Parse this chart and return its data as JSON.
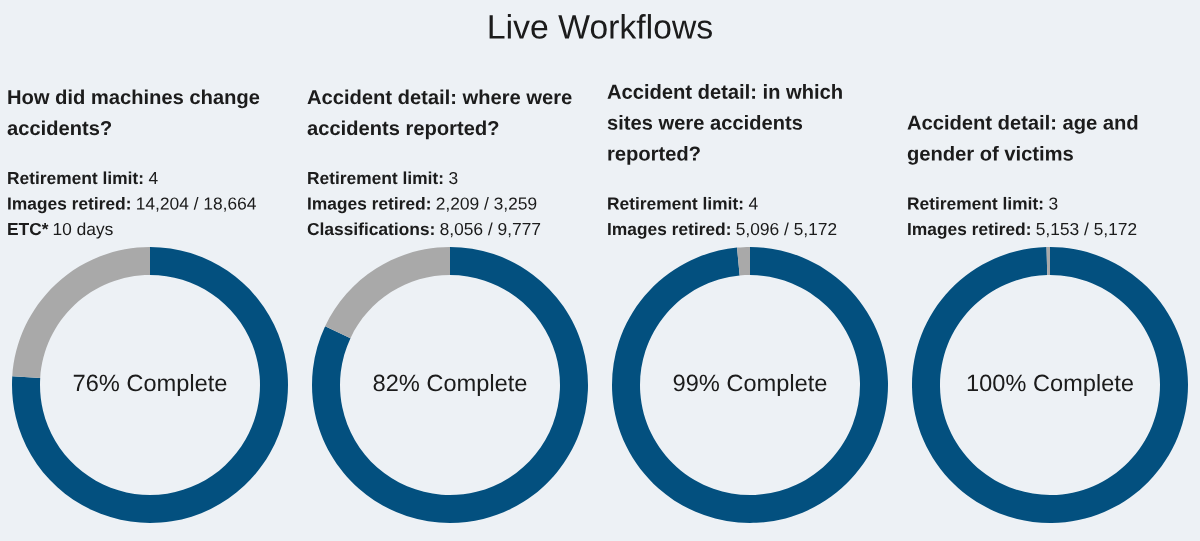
{
  "chart_data": [
    {
      "type": "other",
      "title": "Live Workflows"
    },
    {
      "type": "donut",
      "title": "How did machines change accidents?",
      "categories": [
        null,
        null
      ],
      "values": [
        76,
        24
      ],
      "colors": [
        "#03507f",
        "#a9a9a9"
      ],
      "annotations": [
        "Retirement limit:",
        "4",
        "Images retired:",
        "14,204 / 18,664",
        "ETC*",
        "10 days",
        "76% Complete"
      ]
    },
    {
      "type": "donut",
      "title": "Accident detail: where were accidents reported?",
      "categories": [
        null,
        null
      ],
      "values": [
        82,
        18
      ],
      "colors": [
        "#03507f",
        "#a9a9a9"
      ],
      "annotations": [
        "Retirement limit:",
        "3",
        "Images retired:",
        "2,209 / 3,259",
        "Classifications:",
        "8,056 / 9,777",
        "82% Complete"
      ]
    },
    {
      "type": "donut",
      "title": "Accident detail: in which sites were accidents reported?",
      "categories": [
        null,
        null
      ],
      "values": [
        98.5,
        1.5
      ],
      "colors": [
        "#03507f",
        "#a9a9a9"
      ],
      "annotations": [
        "Retirement limit:",
        "4",
        "Images retired:",
        "5,096 / 5,172",
        "99% Complete"
      ]
    },
    {
      "type": "donut",
      "title": "Accident detail: age and gender of victims",
      "categories": [
        null,
        null
      ],
      "values": [
        99.6,
        0.4
      ],
      "colors": [
        "#03507f",
        "#a9a9a9"
      ],
      "annotations": [
        "Retirement limit:",
        "3",
        "Images retired:",
        "5,153 / 5,172",
        "100% Complete"
      ]
    }
  ]
}
